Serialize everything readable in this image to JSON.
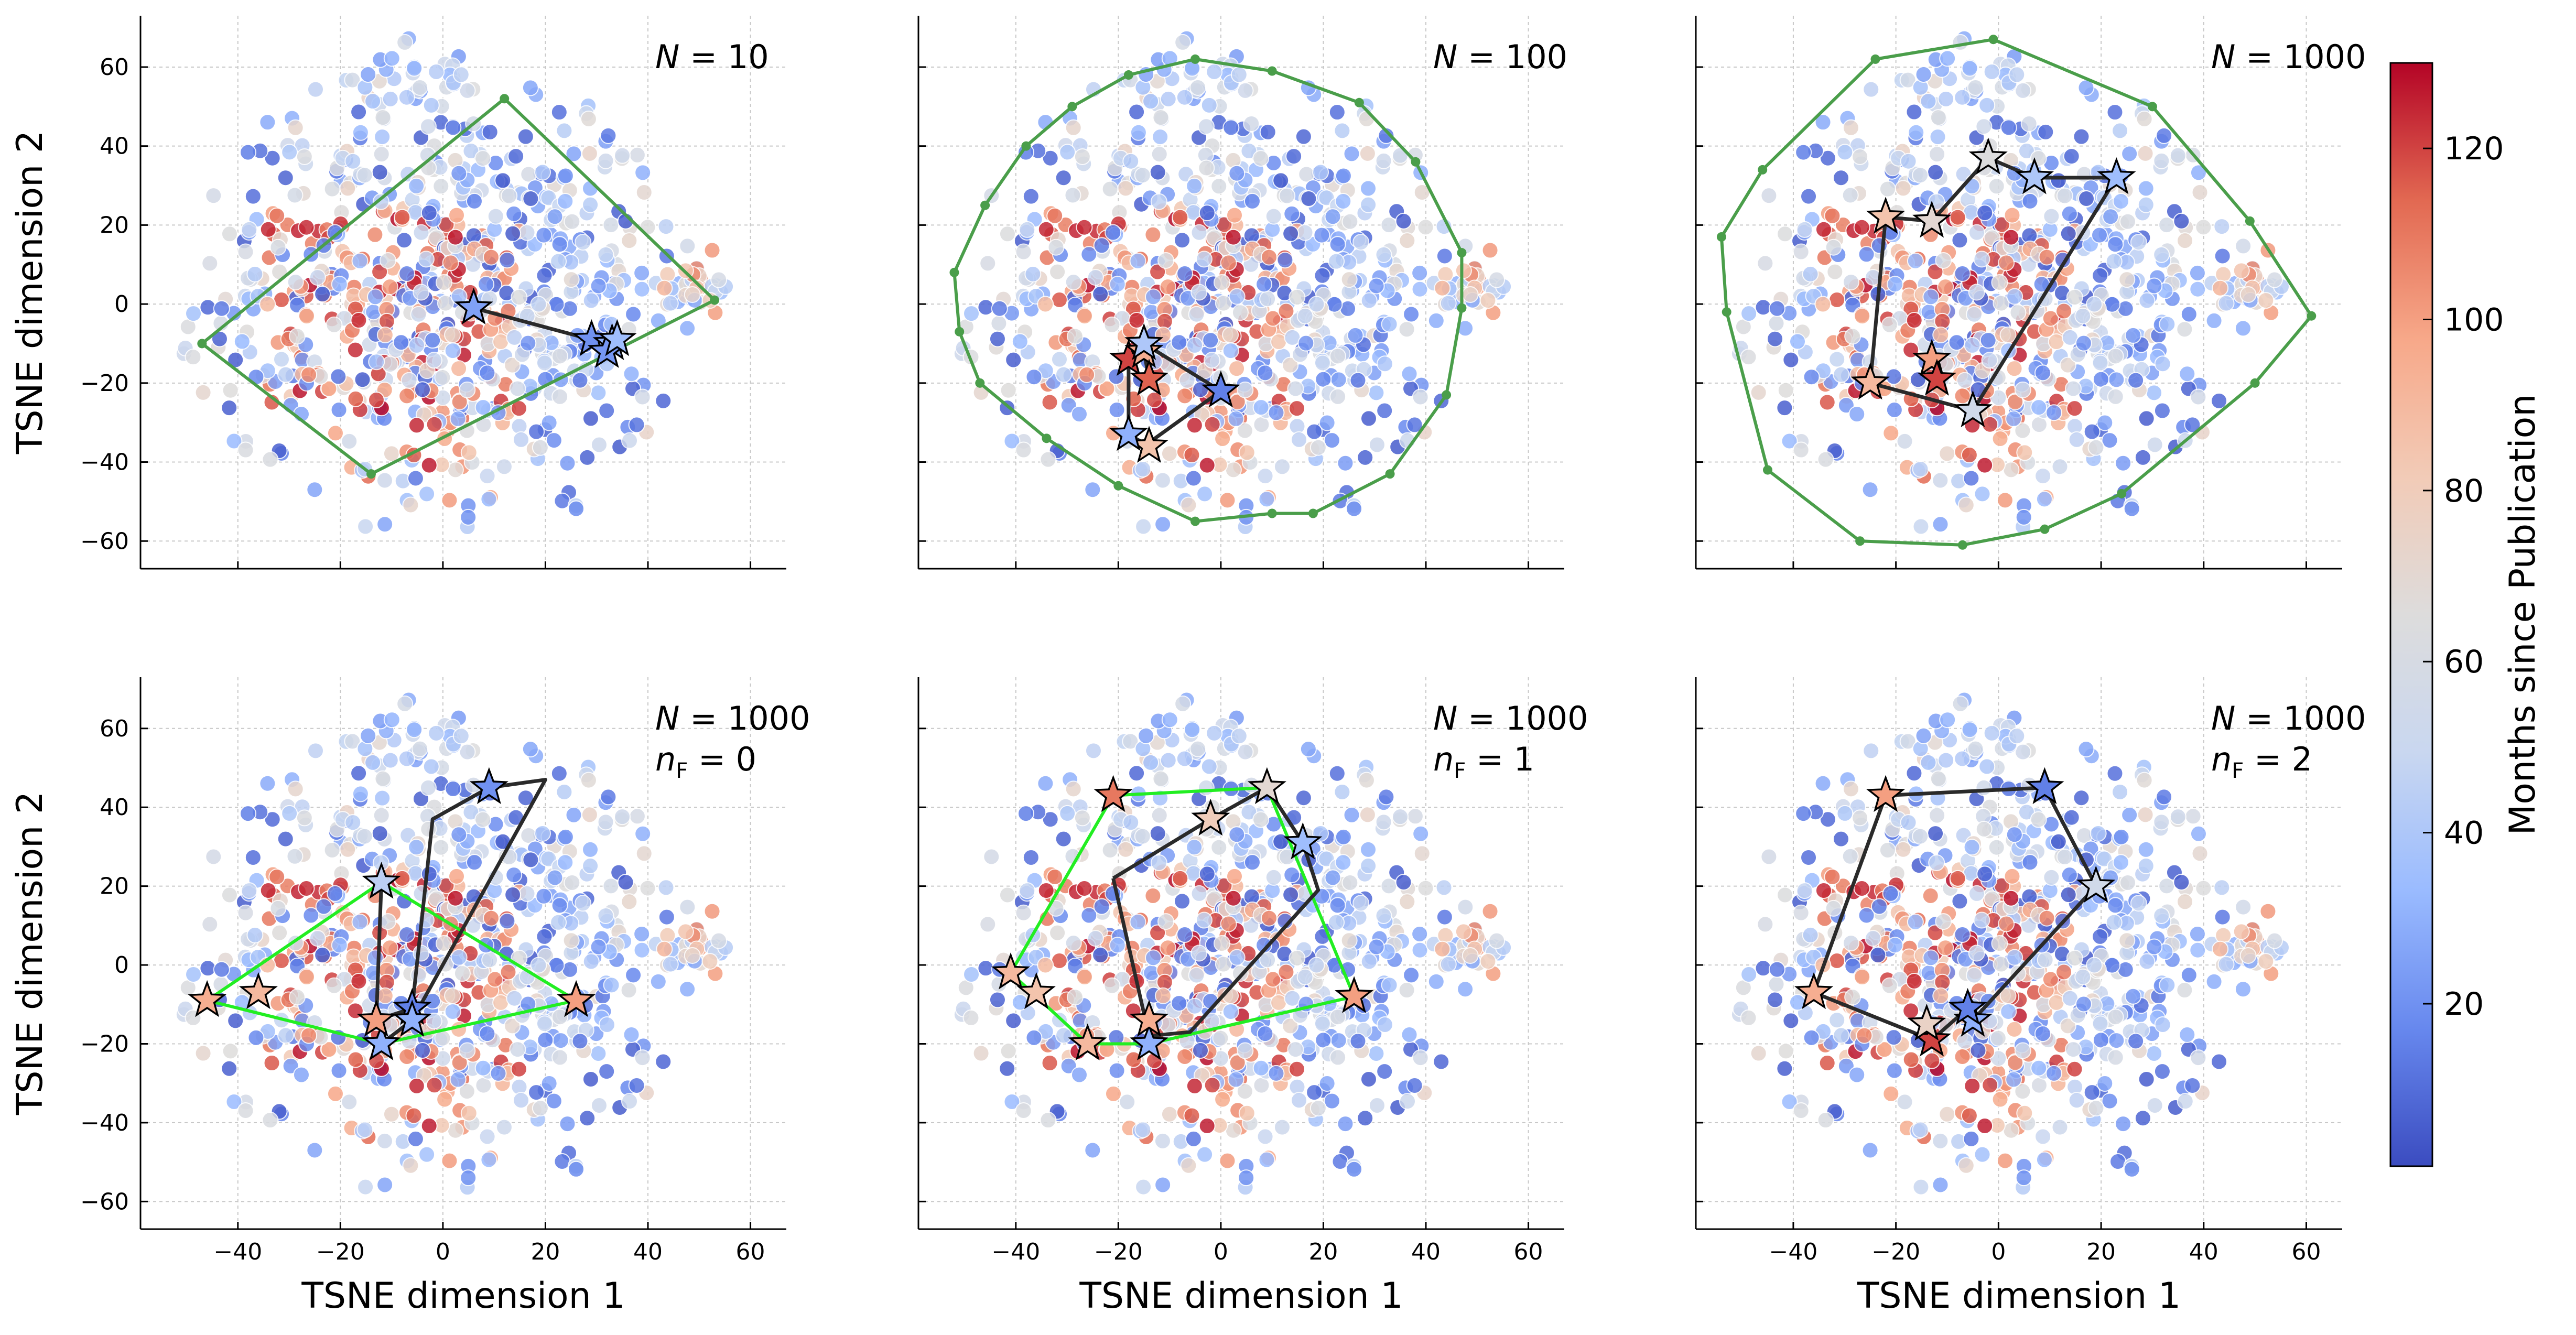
{
  "colormap": {
    "name": "coolwarm",
    "min": 1,
    "max": 130,
    "stops": [
      "#3b4cc0",
      "#6788ee",
      "#9abbff",
      "#c9d7f0",
      "#dddcdc",
      "#f2cbb7",
      "#f7a889",
      "#e26952",
      "#b40426"
    ],
    "label": "Months since Publication",
    "ticks": [
      20,
      40,
      60,
      80,
      100,
      120
    ]
  },
  "hull_colors": {
    "dark": "#4a9e4a",
    "bright": "#22ee22"
  },
  "chart_data": [
    {
      "type": "scatter",
      "panel": "top-left",
      "annotation": [
        "N = 10"
      ],
      "xlabel": "",
      "ylabel": "TSNE dimension 2",
      "xlim": [
        -59,
        67
      ],
      "ylim": [
        -67,
        73
      ],
      "xticks": [
        -40,
        -20,
        0,
        20,
        40,
        60
      ],
      "yticks": [
        -60,
        -40,
        -20,
        0,
        20,
        40,
        60
      ],
      "show_xtick_labels": false,
      "show_ytick_labels": true,
      "hull_style": "dark",
      "hull": [
        [
          -47,
          -10
        ],
        [
          -14,
          -43
        ],
        [
          53,
          1
        ],
        [
          12,
          52
        ]
      ],
      "path": [
        [
          6,
          -1
        ],
        [
          29,
          -9
        ],
        [
          33,
          -10
        ],
        [
          32,
          -12
        ],
        [
          34,
          -9
        ]
      ],
      "stars": [
        {
          "x": 6,
          "y": -1,
          "months": 25
        },
        {
          "x": 29,
          "y": -9,
          "months": 20
        },
        {
          "x": 33,
          "y": -10,
          "months": 30
        },
        {
          "x": 32,
          "y": -12,
          "months": 22
        },
        {
          "x": 34,
          "y": -9,
          "months": 35
        }
      ]
    },
    {
      "type": "scatter",
      "panel": "top-center",
      "annotation": [
        "N = 100"
      ],
      "xlabel": "",
      "ylabel": "",
      "xlim": [
        -59,
        67
      ],
      "ylim": [
        -67,
        73
      ],
      "xticks": [
        -40,
        -20,
        0,
        20,
        40,
        60
      ],
      "yticks": [
        -60,
        -40,
        -20,
        0,
        20,
        40,
        60
      ],
      "show_xtick_labels": false,
      "show_ytick_labels": false,
      "hull_style": "dark",
      "hull": [
        [
          -52,
          8
        ],
        [
          -51,
          -7
        ],
        [
          -47,
          -20
        ],
        [
          -34,
          -34
        ],
        [
          -20,
          -46
        ],
        [
          -5,
          -55
        ],
        [
          10,
          -53
        ],
        [
          18,
          -53
        ],
        [
          33,
          -43
        ],
        [
          44,
          -23
        ],
        [
          47,
          -1
        ],
        [
          47,
          13
        ],
        [
          38,
          36
        ],
        [
          27,
          51
        ],
        [
          10,
          59
        ],
        [
          -5,
          62
        ],
        [
          -18,
          58
        ],
        [
          -29,
          50
        ],
        [
          -38,
          40
        ],
        [
          -46,
          25
        ]
      ],
      "path": [
        [
          -14,
          -36
        ],
        [
          -18,
          -33
        ],
        [
          -18,
          -14
        ],
        [
          -15,
          -12
        ],
        [
          -14,
          -19
        ],
        [
          -15,
          -10
        ],
        [
          0,
          -22
        ],
        [
          -15,
          -36
        ]
      ],
      "stars": [
        {
          "x": -14,
          "y": -36,
          "months": 85
        },
        {
          "x": -18,
          "y": -33,
          "months": 30
        },
        {
          "x": -18,
          "y": -14,
          "months": 120
        },
        {
          "x": -15,
          "y": -12,
          "months": 95
        },
        {
          "x": -14,
          "y": -19,
          "months": 115
        },
        {
          "x": -15,
          "y": -10,
          "months": 40
        },
        {
          "x": 0,
          "y": -22,
          "months": 15
        }
      ]
    },
    {
      "type": "scatter",
      "panel": "top-right",
      "annotation": [
        "N = 1000"
      ],
      "xlabel": "",
      "ylabel": "",
      "xlim": [
        -59,
        67
      ],
      "ylim": [
        -67,
        73
      ],
      "xticks": [
        -40,
        -20,
        0,
        20,
        40,
        60
      ],
      "yticks": [
        -60,
        -40,
        -20,
        0,
        20,
        40,
        60
      ],
      "show_xtick_labels": false,
      "show_ytick_labels": false,
      "hull_style": "dark",
      "hull": [
        [
          -54,
          17
        ],
        [
          -53,
          -2
        ],
        [
          -45,
          -42
        ],
        [
          -27,
          -60
        ],
        [
          -7,
          -61
        ],
        [
          9,
          -57
        ],
        [
          24,
          -48
        ],
        [
          50,
          -20
        ],
        [
          61,
          -3
        ],
        [
          49,
          21
        ],
        [
          30,
          50
        ],
        [
          -1,
          67
        ],
        [
          -24,
          62
        ],
        [
          -46,
          34
        ]
      ],
      "path": [
        [
          -22,
          22
        ],
        [
          -13,
          21
        ],
        [
          -2,
          37
        ],
        [
          7,
          32
        ],
        [
          23,
          32
        ],
        [
          -5,
          -27
        ],
        [
          -25,
          -20
        ],
        [
          -22,
          22
        ]
      ],
      "stars": [
        {
          "x": -22,
          "y": 22,
          "months": 85
        },
        {
          "x": -13,
          "y": 21,
          "months": 70
        },
        {
          "x": -2,
          "y": 37,
          "months": 65
        },
        {
          "x": 7,
          "y": 32,
          "months": 40
        },
        {
          "x": 23,
          "y": 32,
          "months": 35
        },
        {
          "x": -5,
          "y": -27,
          "months": 55
        },
        {
          "x": -25,
          "y": -20,
          "months": 90
        },
        {
          "x": -13,
          "y": -14,
          "months": 100
        },
        {
          "x": -12,
          "y": -19,
          "months": 120
        }
      ]
    },
    {
      "type": "scatter",
      "panel": "bottom-left",
      "annotation": [
        "N = 1000",
        "n_F = 0"
      ],
      "xlabel": "TSNE dimension 1",
      "ylabel": "TSNE dimension 2",
      "xlim": [
        -59,
        67
      ],
      "ylim": [
        -67,
        73
      ],
      "xticks": [
        -40,
        -20,
        0,
        20,
        40,
        60
      ],
      "yticks": [
        -60,
        -40,
        -20,
        0,
        20,
        40,
        60
      ],
      "show_xtick_labels": true,
      "show_ytick_labels": true,
      "hull_style": "bright",
      "hull": [
        [
          -46,
          -9
        ],
        [
          -12,
          21
        ],
        [
          26,
          -9
        ],
        [
          -12,
          -20
        ]
      ],
      "path": [
        [
          -12,
          21
        ],
        [
          -13,
          -14
        ],
        [
          -6,
          -11
        ],
        [
          -2,
          37
        ],
        [
          9,
          45
        ],
        [
          20,
          47
        ],
        [
          -6,
          -14
        ],
        [
          -12,
          -20
        ]
      ],
      "stars": [
        {
          "x": -46,
          "y": -9,
          "months": 95
        },
        {
          "x": -36,
          "y": -7,
          "months": 90
        },
        {
          "x": -12,
          "y": 21,
          "months": 45
        },
        {
          "x": 26,
          "y": -9,
          "months": 100
        },
        {
          "x": -12,
          "y": -20,
          "months": 30
        },
        {
          "x": -13,
          "y": -14,
          "months": 100
        },
        {
          "x": -6,
          "y": -11,
          "months": 15
        },
        {
          "x": -6,
          "y": -14,
          "months": 30
        },
        {
          "x": 9,
          "y": 45,
          "months": 20
        }
      ]
    },
    {
      "type": "scatter",
      "panel": "bottom-center",
      "annotation": [
        "N = 1000",
        "n_F = 1"
      ],
      "xlabel": "TSNE dimension 1",
      "ylabel": "",
      "xlim": [
        -59,
        67
      ],
      "ylim": [
        -67,
        73
      ],
      "xticks": [
        -40,
        -20,
        0,
        20,
        40,
        60
      ],
      "yticks": [
        -60,
        -40,
        -20,
        0,
        20,
        40,
        60
      ],
      "show_xtick_labels": true,
      "show_ytick_labels": false,
      "hull_style": "bright",
      "hull": [
        [
          -41,
          -2
        ],
        [
          -21,
          43
        ],
        [
          9,
          45
        ],
        [
          26,
          -8
        ],
        [
          -14,
          -20
        ],
        [
          -26,
          -20
        ]
      ],
      "path": [
        [
          -21,
          22
        ],
        [
          -2,
          37
        ],
        [
          9,
          45
        ],
        [
          16,
          31
        ],
        [
          19,
          19
        ],
        [
          -6,
          -17
        ],
        [
          -14,
          -18
        ],
        [
          -21,
          22
        ]
      ],
      "stars": [
        {
          "x": -41,
          "y": -2,
          "months": 90
        },
        {
          "x": -36,
          "y": -7,
          "months": 85
        },
        {
          "x": -21,
          "y": 43,
          "months": 110
        },
        {
          "x": -2,
          "y": 37,
          "months": 80
        },
        {
          "x": 9,
          "y": 45,
          "months": 70
        },
        {
          "x": 16,
          "y": 31,
          "months": 35
        },
        {
          "x": 26,
          "y": -8,
          "months": 100
        },
        {
          "x": -14,
          "y": -20,
          "months": 30
        },
        {
          "x": -14,
          "y": -14,
          "months": 95
        },
        {
          "x": -26,
          "y": -20,
          "months": 90
        }
      ]
    },
    {
      "type": "scatter",
      "panel": "bottom-right",
      "annotation": [
        "N = 1000",
        "n_F = 2"
      ],
      "xlabel": "TSNE dimension 1",
      "ylabel": "",
      "xlim": [
        -59,
        67
      ],
      "ylim": [
        -67,
        73
      ],
      "xticks": [
        -40,
        -20,
        0,
        20,
        40,
        60
      ],
      "yticks": [
        -60,
        -40,
        -20,
        0,
        20,
        40,
        60
      ],
      "show_xtick_labels": true,
      "show_ytick_labels": false,
      "hull_style": "none",
      "hull": [],
      "path": [
        [
          -36,
          -7
        ],
        [
          -22,
          43
        ],
        [
          9,
          45
        ],
        [
          19,
          20
        ],
        [
          -5,
          -14
        ],
        [
          -6,
          -11
        ],
        [
          -13,
          -19
        ],
        [
          -36,
          -7
        ]
      ],
      "stars": [
        {
          "x": -36,
          "y": -7,
          "months": 95
        },
        {
          "x": -22,
          "y": 43,
          "months": 100
        },
        {
          "x": 9,
          "y": 45,
          "months": 15
        },
        {
          "x": 19,
          "y": 20,
          "months": 55
        },
        {
          "x": -5,
          "y": -14,
          "months": 30
        },
        {
          "x": -6,
          "y": -11,
          "months": 15
        },
        {
          "x": -13,
          "y": -19,
          "months": 120
        },
        {
          "x": -14,
          "y": -15,
          "months": 75
        }
      ]
    }
  ]
}
